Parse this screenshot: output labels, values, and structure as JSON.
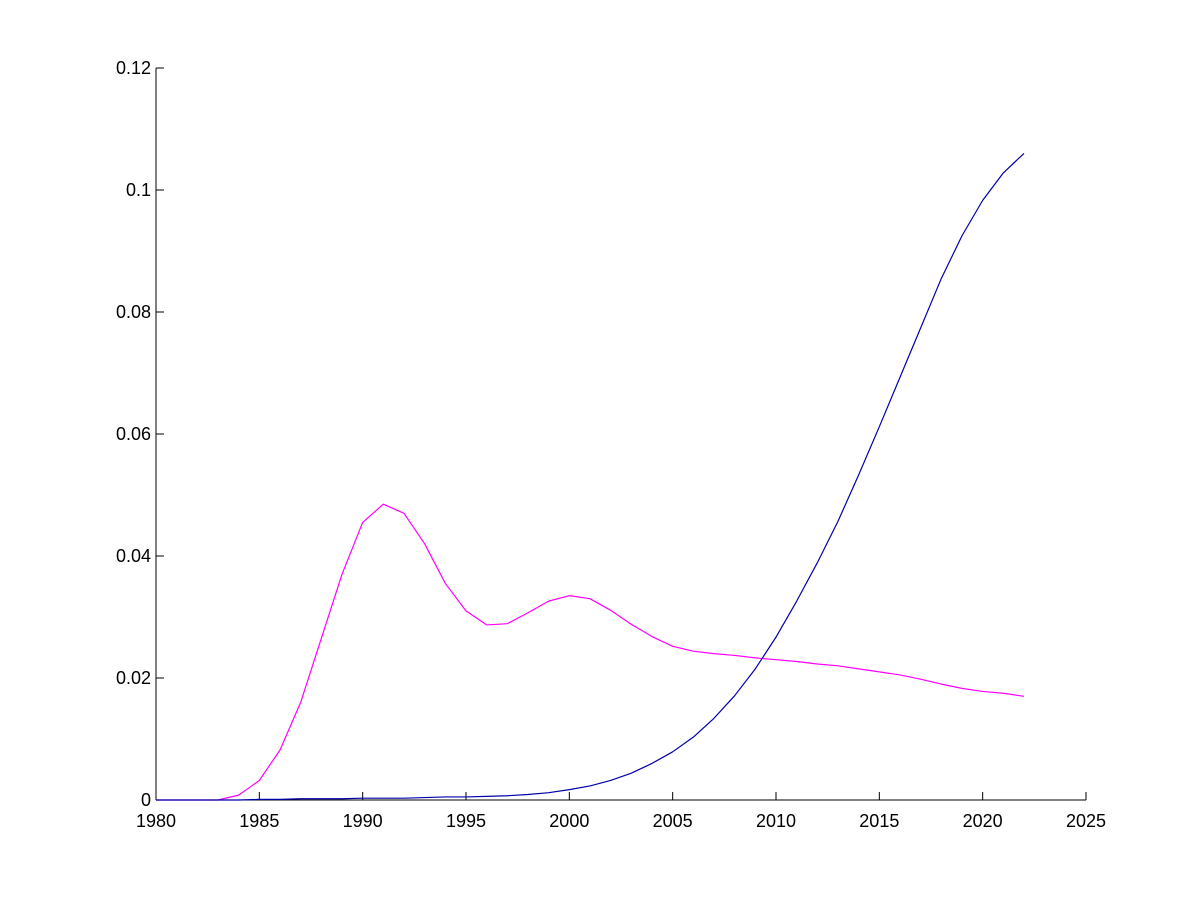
{
  "chart_data": {
    "type": "line",
    "title": "",
    "xlabel": "",
    "ylabel": "",
    "xlim": [
      1980,
      2025
    ],
    "ylim": [
      0,
      0.12
    ],
    "grid": false,
    "x_ticks": [
      1980,
      1985,
      1990,
      1995,
      2000,
      2005,
      2010,
      2015,
      2020,
      2025
    ],
    "x_tick_labels": [
      "1980",
      "1985",
      "1990",
      "1995",
      "2000",
      "2005",
      "2010",
      "2015",
      "2020",
      "2025"
    ],
    "y_ticks": [
      0,
      0.02,
      0.04,
      0.06,
      0.08,
      0.1,
      0.12
    ],
    "y_tick_labels": [
      "0",
      "0.02",
      "0.04",
      "0.06",
      "0.08",
      "0.1",
      "0.12"
    ],
    "series": [
      {
        "color": "#ff00ff",
        "x": [
          1980,
          1981,
          1982,
          1983,
          1984,
          1985,
          1986,
          1987,
          1988,
          1989,
          1990,
          1991,
          1992,
          1993,
          1994,
          1995,
          1996,
          1997,
          1998,
          1999,
          2000,
          2001,
          2002,
          2003,
          2004,
          2005,
          2006,
          2007,
          2008,
          2009,
          2010,
          2011,
          2012,
          2013,
          2014,
          2015,
          2016,
          2017,
          2018,
          2019,
          2020,
          2021,
          2022
        ],
        "y": [
          0,
          0,
          0,
          0,
          0.0008,
          0.0032,
          0.0082,
          0.016,
          0.0265,
          0.037,
          0.0455,
          0.0485,
          0.047,
          0.042,
          0.0355,
          0.031,
          0.0287,
          0.0289,
          0.0307,
          0.0326,
          0.0335,
          0.033,
          0.0311,
          0.0288,
          0.0268,
          0.0252,
          0.0244,
          0.024,
          0.0237,
          0.0233,
          0.023,
          0.0227,
          0.0223,
          0.022,
          0.0215,
          0.021,
          0.0205,
          0.0198,
          0.019,
          0.0183,
          0.0178,
          0.0175,
          0.017
        ]
      },
      {
        "color": "#0000aa",
        "x": [
          1980,
          1981,
          1982,
          1983,
          1984,
          1985,
          1986,
          1987,
          1988,
          1989,
          1990,
          1991,
          1992,
          1993,
          1994,
          1995,
          1996,
          1997,
          1998,
          1999,
          2000,
          2001,
          2002,
          2003,
          2004,
          2005,
          2006,
          2007,
          2008,
          2009,
          2010,
          2011,
          2012,
          2013,
          2014,
          2015,
          2016,
          2017,
          2018,
          2019,
          2020,
          2021,
          2022
        ],
        "y": [
          0,
          0,
          0,
          0,
          0,
          0.0001,
          0.0001,
          0.0002,
          0.0002,
          0.0002,
          0.0003,
          0.0003,
          0.0003,
          0.0004,
          0.0005,
          0.0005,
          0.0006,
          0.0007,
          0.0009,
          0.0012,
          0.0017,
          0.0023,
          0.0032,
          0.0044,
          0.006,
          0.0079,
          0.0103,
          0.0134,
          0.0171,
          0.0215,
          0.0267,
          0.0326,
          0.0389,
          0.0457,
          0.0533,
          0.0612,
          0.0693,
          0.0774,
          0.0855,
          0.0925,
          0.0983,
          0.1028,
          0.106
        ]
      }
    ]
  }
}
